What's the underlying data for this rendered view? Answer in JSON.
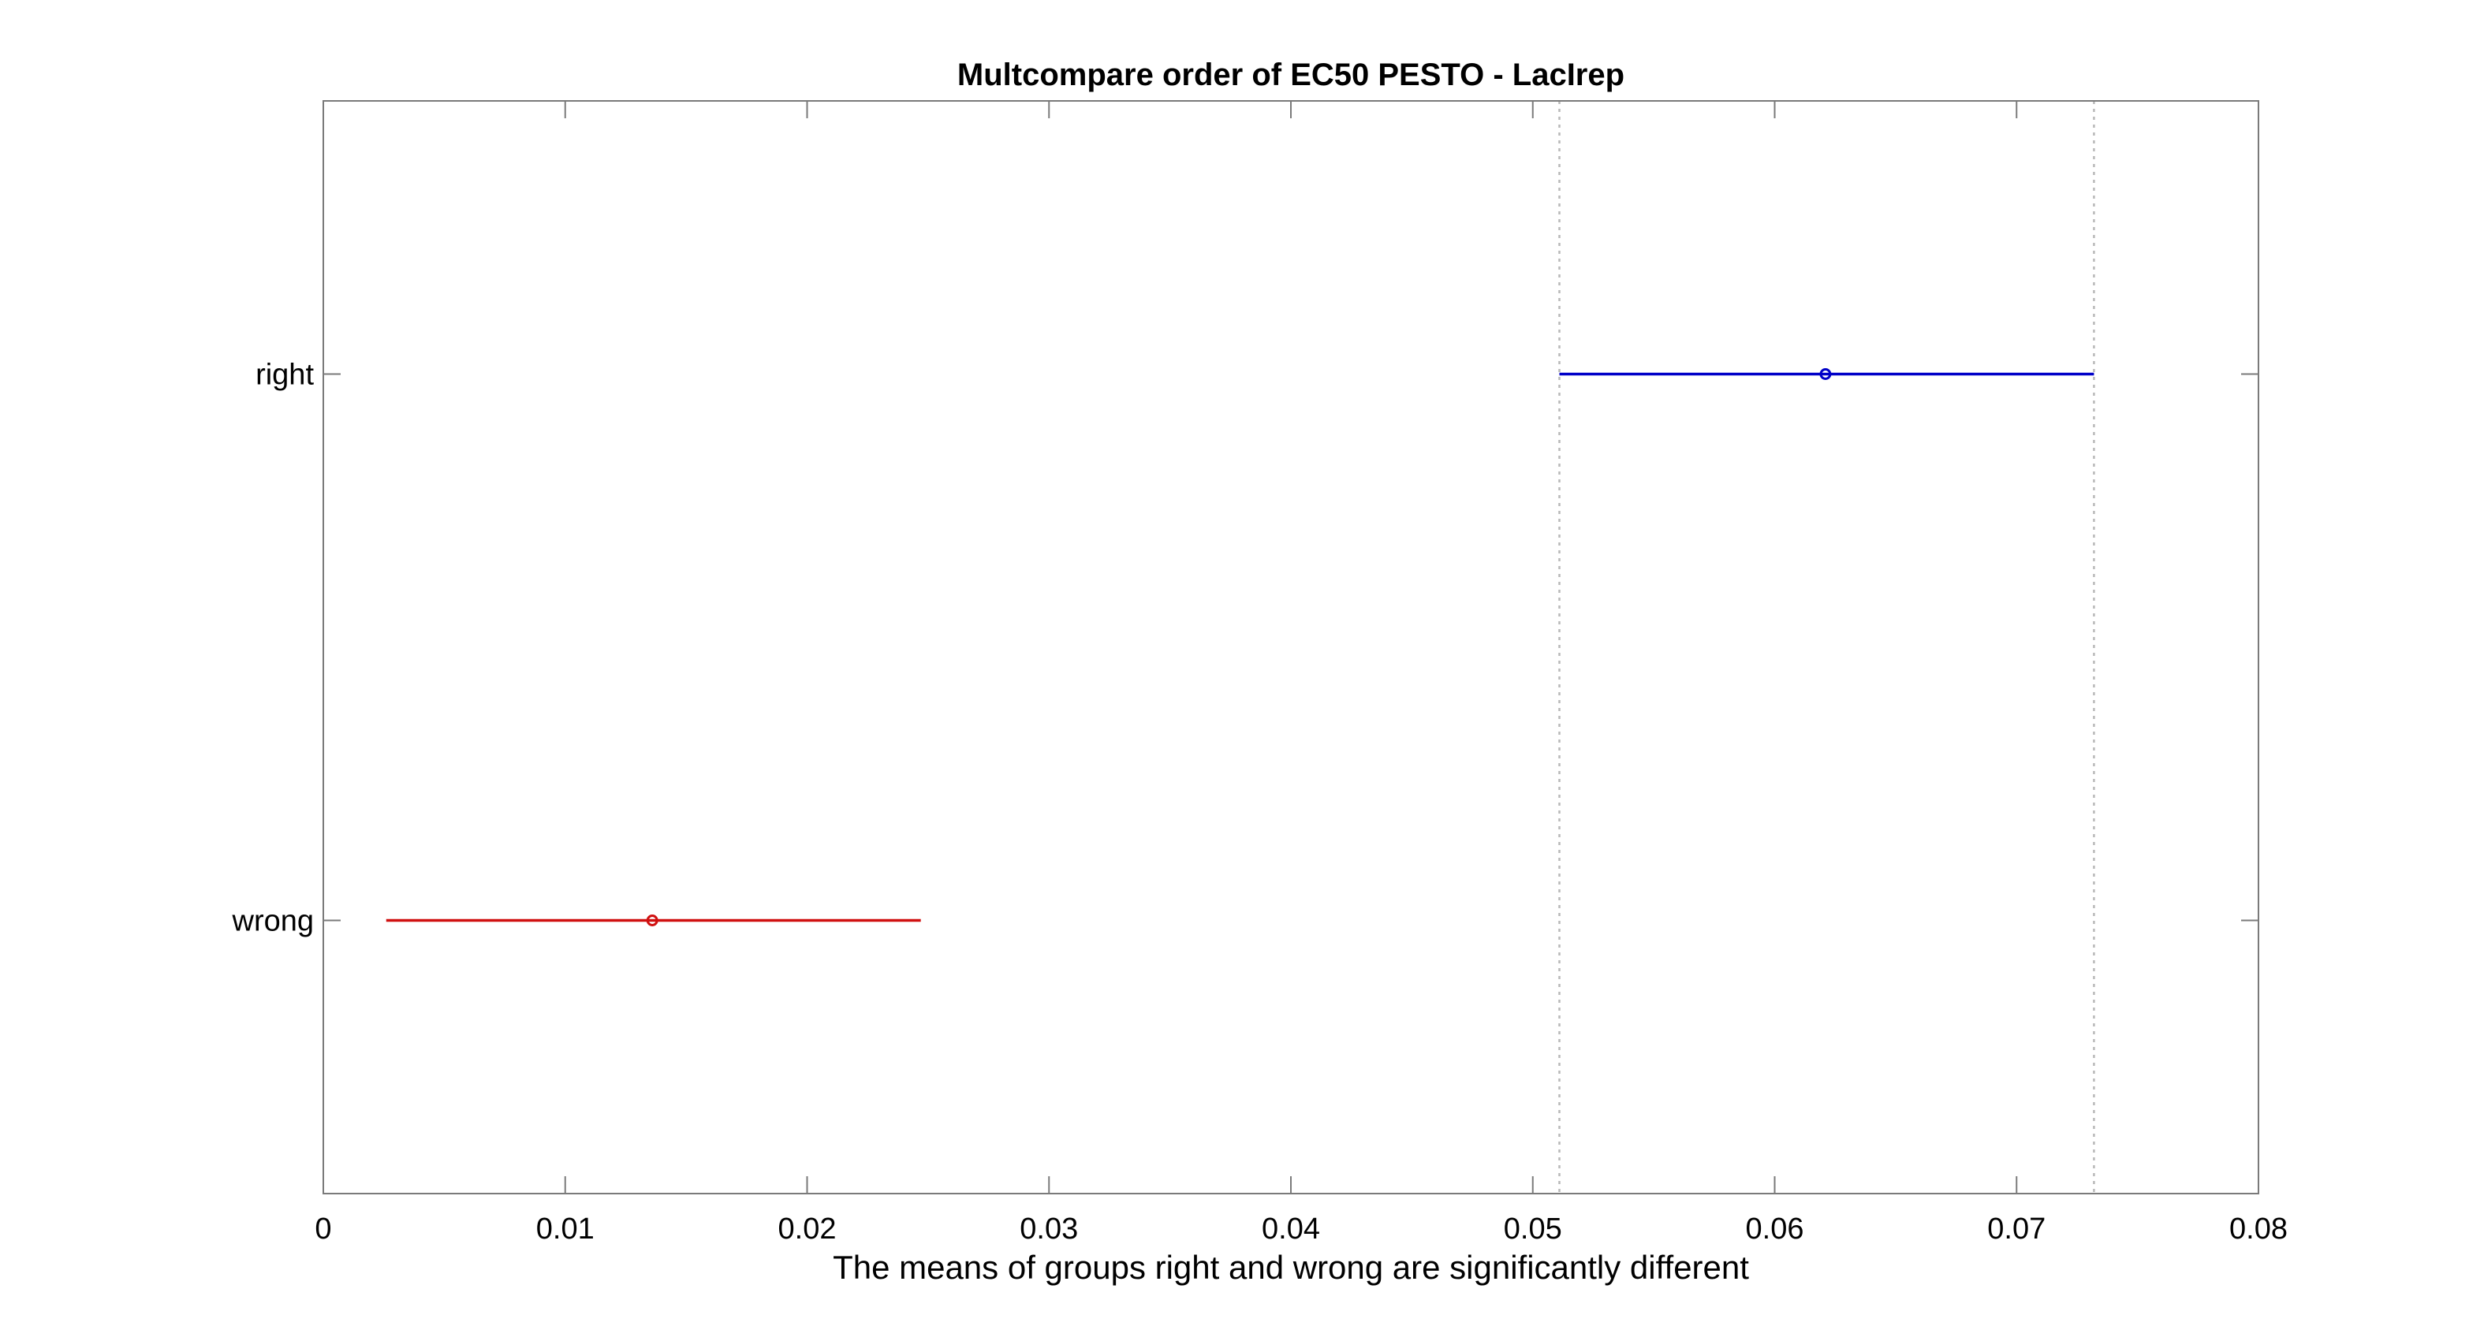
{
  "chart_data": {
    "type": "errorbar",
    "title": "Multcompare order of EC50 PESTO - LacIrep",
    "xlabel": "The means of groups right and wrong are significantly different",
    "ylabel": "",
    "xlim": [
      0,
      0.08
    ],
    "x_ticks": [
      "0",
      "0.01",
      "0.02",
      "0.03",
      "0.04",
      "0.05",
      "0.06",
      "0.07",
      "0.08"
    ],
    "x_tick_values": [
      0,
      0.01,
      0.02,
      0.03,
      0.04,
      0.05,
      0.06,
      0.07,
      0.08
    ],
    "y_categories": [
      "right",
      "wrong"
    ],
    "grid": false,
    "reference_lines": [
      0.0511,
      0.0732
    ],
    "groups": [
      {
        "label": "right",
        "mean": 0.0621,
        "lower": 0.0511,
        "upper": 0.0732,
        "color": "#0000c8"
      },
      {
        "label": "wrong",
        "mean": 0.0136,
        "lower": 0.0026,
        "upper": 0.0247,
        "color": "#d01010"
      }
    ],
    "colors": {
      "axis": "#7a7a7a",
      "reference_line": "#b8b8b8"
    }
  }
}
